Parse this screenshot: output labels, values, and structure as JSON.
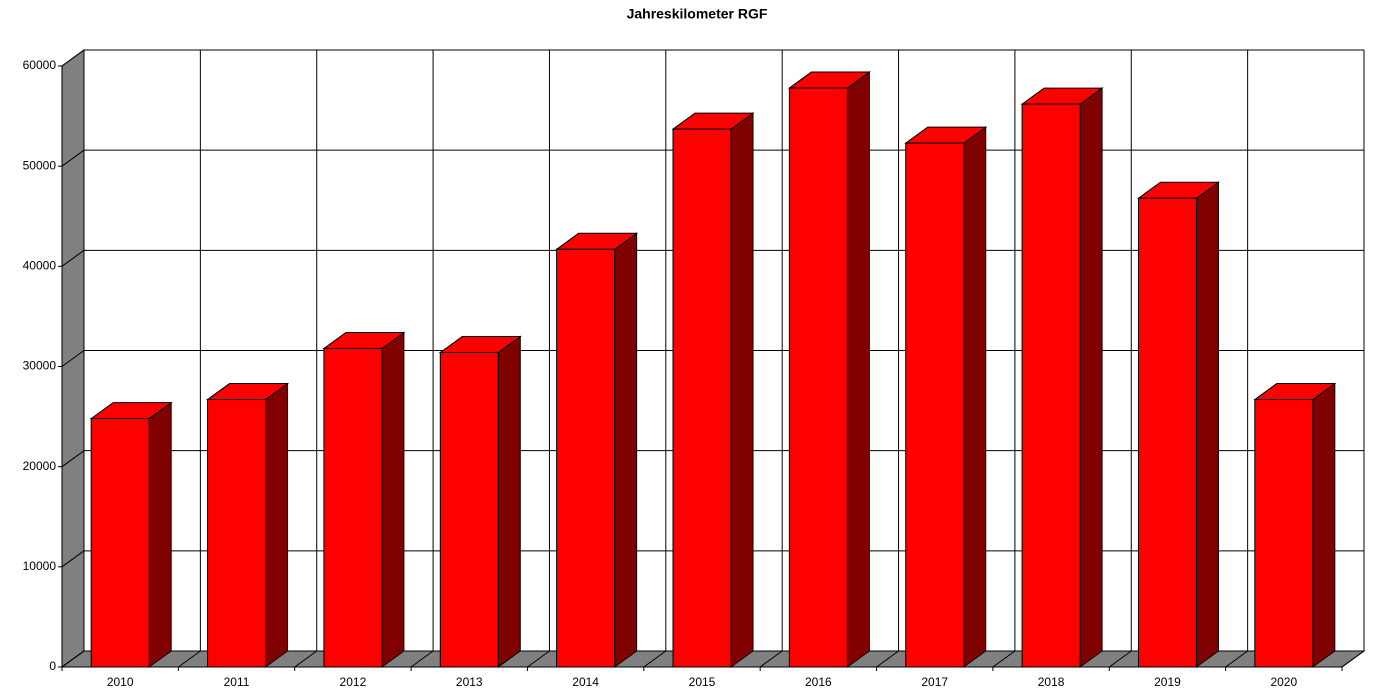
{
  "chart_data": {
    "type": "bar3d",
    "title": "Jahreskilometer RGF",
    "categories": [
      "2010",
      "2011",
      "2012",
      "2013",
      "2014",
      "2015",
      "2016",
      "2017",
      "2018",
      "2019",
      "2020"
    ],
    "values": [
      24800,
      26700,
      31800,
      31400,
      41700,
      53700,
      57800,
      52300,
      56200,
      46800,
      26700
    ],
    "color": "#ff0000",
    "side_color": "#800000",
    "wall_color": "#808080",
    "ylim": [
      0,
      60000
    ],
    "yticks": [
      0,
      10000,
      20000,
      30000,
      40000,
      50000,
      60000
    ],
    "grid": true
  }
}
